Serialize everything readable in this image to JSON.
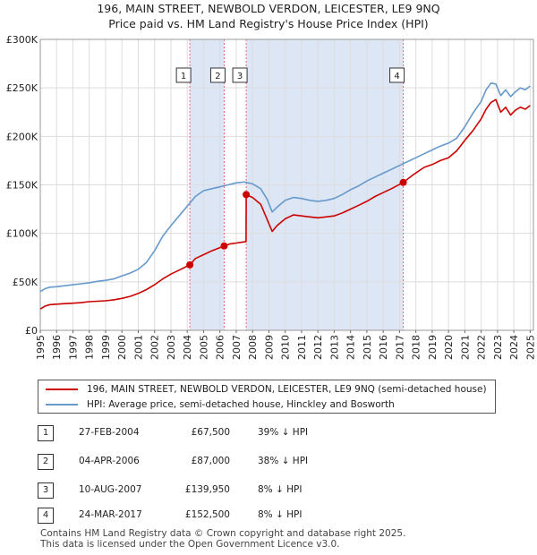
{
  "header": {
    "line1": "196, MAIN STREET, NEWBOLD VERDON, LEICESTER, LE9 9NQ",
    "line2": "Price paid vs. HM Land Registry's House Price Index (HPI)"
  },
  "colors": {
    "property": "#cc0000",
    "hpi": "#6699cc",
    "shade": "#dde6f5",
    "marker_line": "#ee6677",
    "grid": "#dddddd"
  },
  "chart_data": {
    "type": "line",
    "title": "Price paid vs. HM Land Registry's House Price Index (HPI)",
    "xlabel": "",
    "ylabel": "",
    "xlim": [
      1995.0,
      2025.2
    ],
    "ylim": [
      0,
      300000
    ],
    "yticks": [
      0,
      50000,
      100000,
      150000,
      200000,
      250000,
      300000
    ],
    "ytick_labels": [
      "£0",
      "£50K",
      "£100K",
      "£150K",
      "£200K",
      "£250K",
      "£300K"
    ],
    "xticks": [
      "1995",
      "1996",
      "1997",
      "1998",
      "1999",
      "2000",
      "2001",
      "2002",
      "2003",
      "2004",
      "2005",
      "2006",
      "2007",
      "2008",
      "2009",
      "2010",
      "2011",
      "2012",
      "2013",
      "2014",
      "2015",
      "2016",
      "2017",
      "2018",
      "2019",
      "2020",
      "2021",
      "2022",
      "2023",
      "2024",
      "2025"
    ],
    "grid": true,
    "series": [
      {
        "name": "196, MAIN STREET, NEWBOLD VERDON, LEICESTER, LE9 9NQ (semi-detached house)",
        "color": "#cc0000",
        "x": [
          1995.0,
          1995.3,
          1995.6,
          1996.0,
          1996.5,
          1997.0,
          1997.5,
          1998.0,
          1998.5,
          1999.0,
          1999.5,
          2000.0,
          2000.5,
          2001.0,
          2001.5,
          2002.0,
          2002.5,
          2003.0,
          2003.5,
          2004.16,
          2004.5,
          2005.0,
          2005.5,
          2006.26,
          2006.6,
          2007.0,
          2007.4,
          2007.6,
          2007.61,
          2008.0,
          2008.5,
          2008.8,
          2009.2,
          2009.5,
          2010.0,
          2010.5,
          2011.0,
          2011.5,
          2012.0,
          2012.5,
          2013.0,
          2013.5,
          2014.0,
          2014.5,
          2015.0,
          2015.5,
          2016.0,
          2016.5,
          2017.23,
          2017.8,
          2018.5,
          2019.0,
          2019.5,
          2020.0,
          2020.5,
          2021.0,
          2021.5,
          2022.0,
          2022.3,
          2022.6,
          2022.9,
          2023.2,
          2023.5,
          2023.8,
          2024.1,
          2024.4,
          2024.7,
          2025.0
        ],
        "y": [
          22000,
          25000,
          26500,
          27000,
          27500,
          28000,
          28500,
          29500,
          30000,
          30500,
          31500,
          33000,
          35000,
          38000,
          42000,
          47000,
          53000,
          58000,
          62000,
          67500,
          74000,
          78000,
          82000,
          87000,
          89000,
          90000,
          91000,
          91500,
          139950,
          137000,
          130000,
          118000,
          102000,
          108000,
          115000,
          119000,
          118000,
          117000,
          116000,
          117000,
          118000,
          121000,
          125000,
          129000,
          133000,
          138000,
          142000,
          146000,
          152500,
          160000,
          168000,
          171000,
          175000,
          178000,
          185000,
          196000,
          206000,
          218000,
          228000,
          235000,
          238000,
          225000,
          230000,
          222000,
          227000,
          230000,
          228000,
          232000
        ]
      },
      {
        "name": "HPI: Average price, semi-detached house, Hinckley and Bosworth",
        "color": "#6699cc",
        "x": [
          1995.0,
          1995.3,
          1995.6,
          1996.0,
          1996.5,
          1997.0,
          1997.5,
          1998.0,
          1998.5,
          1999.0,
          1999.5,
          2000.0,
          2000.5,
          2001.0,
          2001.5,
          2002.0,
          2002.5,
          2003.0,
          2003.5,
          2004.0,
          2004.5,
          2005.0,
          2005.5,
          2006.0,
          2006.5,
          2007.0,
          2007.5,
          2008.0,
          2008.5,
          2008.9,
          2009.2,
          2009.5,
          2010.0,
          2010.5,
          2011.0,
          2011.5,
          2012.0,
          2012.5,
          2013.0,
          2013.5,
          2014.0,
          2014.5,
          2015.0,
          2015.5,
          2016.0,
          2016.5,
          2017.0,
          2017.5,
          2018.0,
          2018.5,
          2019.0,
          2019.5,
          2020.0,
          2020.5,
          2021.0,
          2021.5,
          2022.0,
          2022.3,
          2022.6,
          2022.9,
          2023.2,
          2023.5,
          2023.8,
          2024.1,
          2024.4,
          2024.7,
          2025.0
        ],
        "y": [
          40000,
          43000,
          44500,
          45000,
          46000,
          47000,
          48000,
          49000,
          50500,
          51500,
          53000,
          56000,
          59000,
          63000,
          70000,
          82000,
          97000,
          108000,
          118000,
          128000,
          138000,
          144000,
          146000,
          148000,
          150000,
          152000,
          153000,
          151000,
          146000,
          135000,
          122000,
          127000,
          134000,
          137000,
          136000,
          134000,
          133000,
          134000,
          136000,
          140000,
          145000,
          149000,
          154000,
          158000,
          162000,
          166000,
          170000,
          174000,
          178000,
          182000,
          186000,
          190000,
          193000,
          198000,
          210000,
          224000,
          236000,
          248000,
          255000,
          254000,
          242000,
          248000,
          241000,
          246000,
          250000,
          248000,
          252000
        ]
      }
    ],
    "sales": [
      {
        "n": "1",
        "x": 2004.16,
        "y": 67500
      },
      {
        "n": "2",
        "x": 2006.26,
        "y": 87000
      },
      {
        "n": "3",
        "x": 2007.61,
        "y": 139950
      },
      {
        "n": "4",
        "x": 2017.23,
        "y": 152500
      }
    ],
    "shaded_periods": [
      [
        2004.16,
        2006.26
      ],
      [
        2007.61,
        2017.23
      ]
    ]
  },
  "legend": {
    "property": "196, MAIN STREET, NEWBOLD VERDON, LEICESTER, LE9 9NQ (semi-detached house)",
    "hpi": "HPI: Average price, semi-detached house, Hinckley and Bosworth"
  },
  "sales_table": [
    {
      "num": "1",
      "date": "27-FEB-2004",
      "price": "£67,500",
      "hpi": "39% ↓ HPI"
    },
    {
      "num": "2",
      "date": "04-APR-2006",
      "price": "£87,000",
      "hpi": "38% ↓ HPI"
    },
    {
      "num": "3",
      "date": "10-AUG-2007",
      "price": "£139,950",
      "hpi": "8% ↓ HPI"
    },
    {
      "num": "4",
      "date": "24-MAR-2017",
      "price": "£152,500",
      "hpi": "8% ↓ HPI"
    }
  ],
  "footer": {
    "line1": "Contains HM Land Registry data © Crown copyright and database right 2025.",
    "line2": "This data is licensed under the Open Government Licence v3.0."
  }
}
